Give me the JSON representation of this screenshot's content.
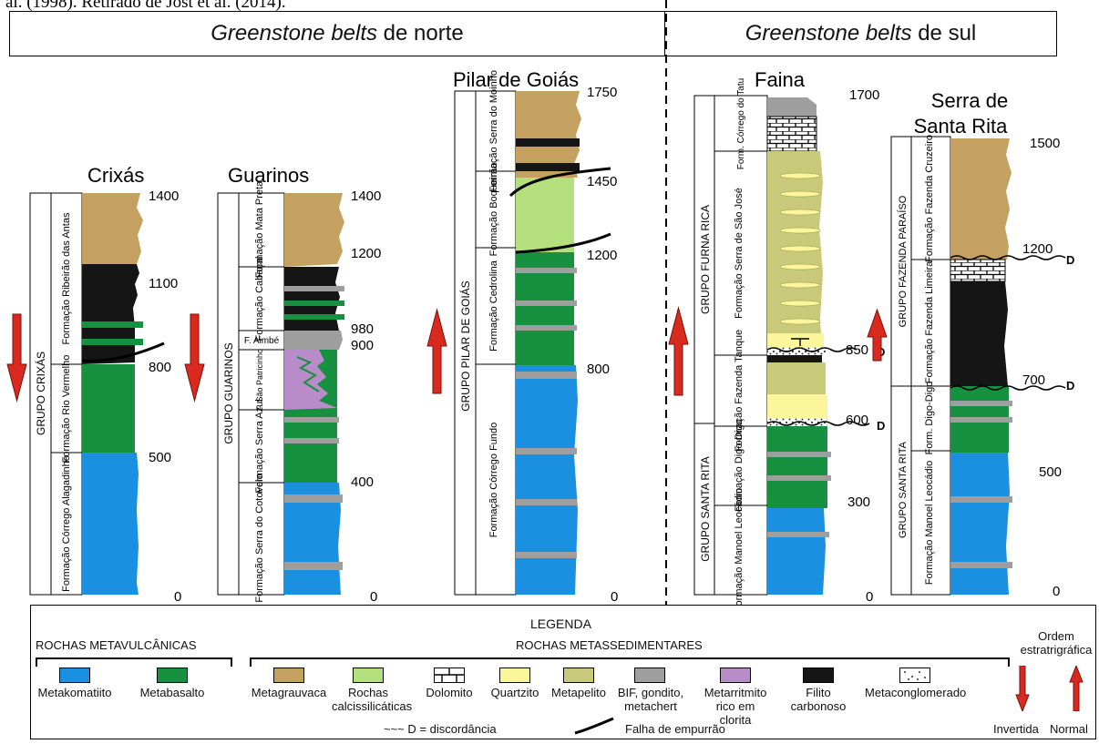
{
  "top_line": "al. (1998). Retirado de Jost et al. (2014).",
  "headers": {
    "north": {
      "italic": "Greenstone belts",
      "rest": " de norte"
    },
    "south": {
      "italic": "Greenstone belts",
      "rest": " de sul"
    }
  },
  "columns": {
    "crixas": {
      "title": "Crixás",
      "group": "GRUPO CRIXÁS",
      "formations": [
        "Formação Ribeirão das Antas",
        "Formação Rio Vermelho",
        "Formação Córrego Alagadinho"
      ],
      "ages": [
        "1400",
        "1100",
        "800",
        "500",
        "0"
      ]
    },
    "guarinos": {
      "title": "Guarinos",
      "group": "GRUPO GUARINOS",
      "formations": [
        "Formação Mata Preta",
        "Formação Cabaçal",
        "F. Aimbé",
        "F. São Patricinho",
        "Formação Serra Azul",
        "Formação Serra do Cotovelo"
      ],
      "ages": [
        "1400",
        "1200",
        "980",
        "900",
        "400",
        "0"
      ]
    },
    "pilar": {
      "title": "Pilar de Goiás",
      "group": "GRUPO PILAR DE GOIÁS",
      "formations": [
        "Formação Serra do Moinho",
        "Formação Boqueirão",
        "Formação Cedrolina",
        "Formação Córrego Fundo"
      ],
      "ages": [
        "1750",
        "1450",
        "1200",
        "800",
        "0"
      ]
    },
    "faina": {
      "title": "Faina",
      "groups": [
        "GRUPO FURNA RICA",
        "GRUPO SANTA RITA"
      ],
      "formations": [
        "Form. Córrego do Tatu",
        "Formação Serra de São José",
        "Formação Fazenda Tanque",
        "Formação Digo-Digo",
        "Formação Manoel Leocádio"
      ],
      "ages": [
        "1700",
        "850",
        "600",
        "300",
        "0"
      ],
      "unconformity_labels": [
        "D",
        "D"
      ]
    },
    "santarita": {
      "title": "Serra de Santa Rita",
      "groups": [
        "GRUPO FAZENDA PARAÍSO",
        "GRUPO SANTA RITA"
      ],
      "formations": [
        "Formação Fazenda Cruzeiro",
        "Formação Fazenda Limeira",
        "Form. Digo-Digo",
        "Formação Manoel Leocádio"
      ],
      "ages": [
        "1500",
        "1200",
        "700",
        "500",
        "0"
      ],
      "unconformity_labels": [
        "D",
        "D"
      ]
    }
  },
  "legend": {
    "title": "LEGENDA",
    "volcanic_title": "ROCHAS METAVULCÂNICAS",
    "sedimentary_title": "ROCHAS METASSEDIMENTARES",
    "volcanic_items": [
      {
        "label": "Metakomatiito",
        "color": "#1b8fe0"
      },
      {
        "label": "Metabasalto",
        "color": "#15913f"
      }
    ],
    "sedimentary_items": [
      {
        "label": "Metagrauvaca",
        "color": "#c4a061"
      },
      {
        "label": "Rochas calcissilicáticas",
        "color": "#b3e07c"
      },
      {
        "label": "Dolomito",
        "color": "#ffffff"
      },
      {
        "label": "Quartzito",
        "color": "#fbf59b"
      },
      {
        "label": "Metapelito",
        "color": "#c9c97b"
      },
      {
        "label": "BIF, gondito, metachert",
        "color": "#9e9e9e"
      },
      {
        "label": "Metarritmito rico em clorita",
        "color": "#b88cc8"
      },
      {
        "label": "Filito carbonoso",
        "color": "#151515"
      },
      {
        "label": "Metaconglomerado",
        "color": "#ffffff"
      }
    ],
    "unconformity": "~~~ D = discordância",
    "fault": "Falha de empurrão",
    "order_title": "Ordem estratrigráfica",
    "order_inverted": "Invertida",
    "order_normal": "Normal"
  }
}
